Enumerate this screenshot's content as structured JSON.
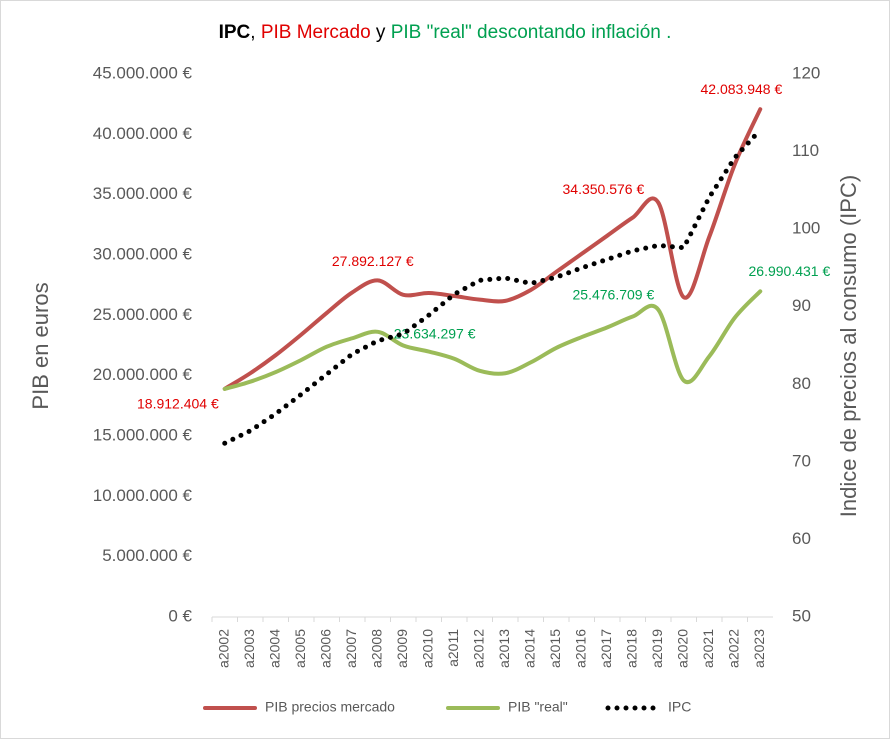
{
  "chart_data": {
    "type": "line",
    "title": [
      {
        "text": "IPC",
        "color": "#000000",
        "bold": true
      },
      {
        "text": ", ",
        "color": "#000000"
      },
      {
        "text": "PIB Mercado",
        "color": "#e00000"
      },
      {
        "text": " y ",
        "color": "#000000"
      },
      {
        "text": "PIB \"real\" descontando inflación .",
        "color": "#00a050"
      }
    ],
    "y_label": "PIB en euros",
    "y2_label": "Indice de precios al consumo (IPC)",
    "categories": [
      "a2002",
      "a2003",
      "a2004",
      "a2005",
      "a2006",
      "a2007",
      "a2008",
      "a2009",
      "a2010",
      "a2011",
      "a2012",
      "a2013",
      "a2014",
      "a2015",
      "a2016",
      "a2017",
      "a2018",
      "a2019",
      "a2020",
      "a2021",
      "a2022",
      "a2023"
    ],
    "series": [
      {
        "name": "PIB precios mercado",
        "color": "#c0504d",
        "label_color": "#e00000",
        "style": "solid",
        "values": [
          18912404,
          20200000,
          21700000,
          23400000,
          25200000,
          26900000,
          27892127,
          26700000,
          26850000,
          26600000,
          26300000,
          26200000,
          27100000,
          28600000,
          30100000,
          31600000,
          33100000,
          34350576,
          26500000,
          31500000,
          37500000,
          42083948
        ],
        "value_labels": [
          "18.912.404 €",
          null,
          null,
          null,
          null,
          null,
          "27.892.127 €",
          null,
          null,
          null,
          null,
          null,
          null,
          null,
          null,
          null,
          null,
          "34.350.576 €",
          null,
          null,
          null,
          "42.083.948 €"
        ]
      },
      {
        "name": "PIB \"real\"",
        "color": "#9bbb59",
        "label_color": "#00a050",
        "style": "solid",
        "values": [
          18900000,
          19500000,
          20300000,
          21300000,
          22400000,
          23100000,
          23634297,
          22500000,
          22000000,
          21400000,
          20400000,
          20200000,
          21100000,
          22300000,
          23200000,
          24000000,
          24900000,
          25476709,
          19600000,
          21600000,
          24800000,
          26990431
        ],
        "value_labels": [
          null,
          null,
          null,
          null,
          null,
          null,
          "23.634.297 €",
          null,
          null,
          null,
          null,
          null,
          null,
          null,
          null,
          null,
          null,
          "25.476.709 €",
          null,
          null,
          null,
          "26.990.431 €"
        ]
      },
      {
        "name": "IPC",
        "color": "#000000",
        "style": "dotted",
        "axis": "y2",
        "values": [
          72.4,
          74.0,
          76.2,
          78.7,
          81.3,
          83.9,
          85.6,
          86.5,
          88.9,
          91.6,
          93.4,
          93.7,
          93.0,
          93.8,
          95.0,
          96.1,
          97.2,
          97.9,
          97.6,
          104.1,
          109.2,
          112.8
        ]
      }
    ],
    "ylim": [
      0,
      45000000
    ],
    "yticks": [
      {
        "value": 0,
        "label": "0 €"
      },
      {
        "value": 5000000,
        "label": "5.000.000 €"
      },
      {
        "value": 10000000,
        "label": "10.000.000 €"
      },
      {
        "value": 15000000,
        "label": "15.000.000 €"
      },
      {
        "value": 20000000,
        "label": "20.000.000 €"
      },
      {
        "value": 25000000,
        "label": "25.000.000 €"
      },
      {
        "value": 30000000,
        "label": "30.000.000 €"
      },
      {
        "value": 35000000,
        "label": "35.000.000 €"
      },
      {
        "value": 40000000,
        "label": "40.000.000 €"
      },
      {
        "value": 45000000,
        "label": "45.000.000 €"
      }
    ],
    "y2lim": [
      50,
      120
    ],
    "y2ticks": [
      50,
      60,
      70,
      80,
      90,
      100,
      110,
      120
    ],
    "grid": false,
    "legend": "bottom"
  }
}
